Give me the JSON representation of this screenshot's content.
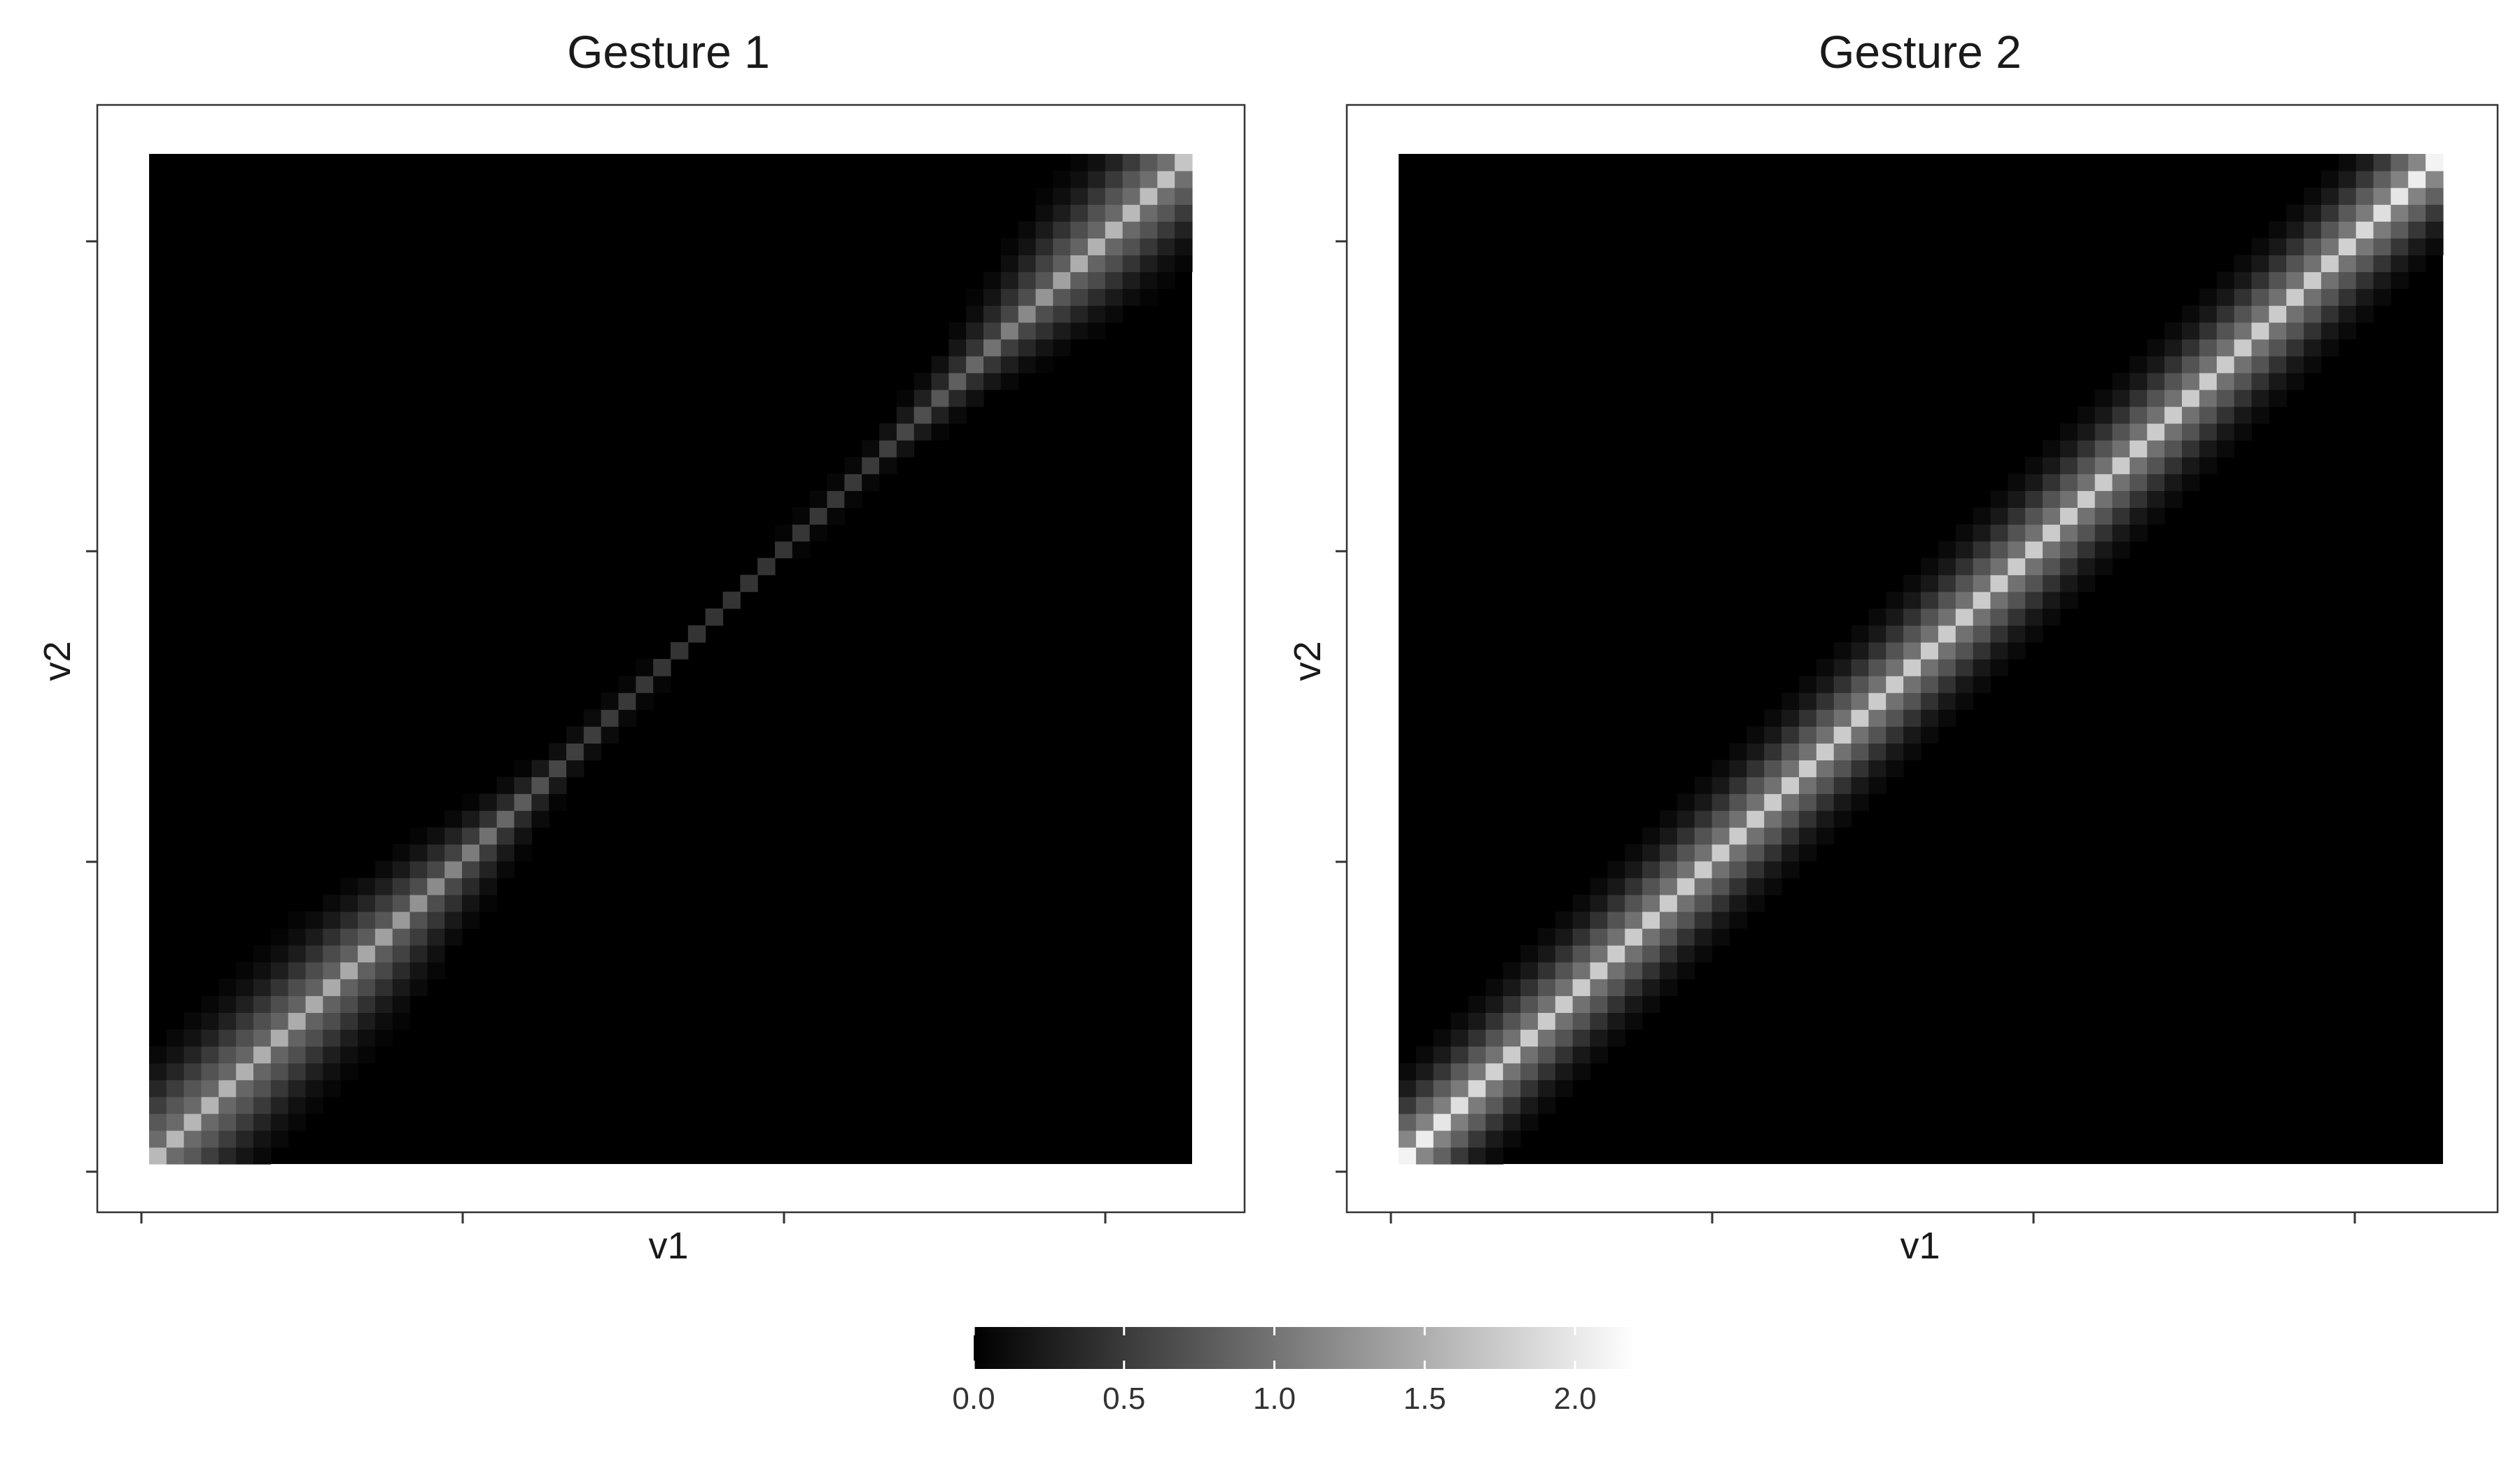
{
  "chart_data": [
    {
      "type": "heatmap",
      "title": "Gesture 1",
      "xlabel": "v1",
      "ylabel": "v2",
      "x_tick_labels": [],
      "y_tick_labels": [],
      "grid_size": 60,
      "colormap": "black-to-white",
      "description_of_values": "Intensity concentrated along the diagonal v1 = v2; wide bright bands at both ends, thin dim ridge in the middle.",
      "diagonal_profile": {
        "position": [
          0.0,
          0.1,
          0.2,
          0.3,
          0.4,
          0.5,
          0.6,
          0.7,
          0.8,
          0.9,
          1.0
        ],
        "peak_value": [
          1.6,
          1.5,
          1.45,
          1.1,
          0.55,
          0.45,
          0.45,
          0.5,
          0.9,
          1.5,
          1.7
        ],
        "band_width_sd": [
          2.8,
          2.6,
          2.4,
          1.6,
          0.7,
          0.5,
          0.5,
          0.6,
          1.4,
          2.4,
          2.6
        ]
      }
    },
    {
      "type": "heatmap",
      "title": "Gesture 2",
      "xlabel": "v1",
      "ylabel": "v2",
      "x_tick_labels": [],
      "y_tick_labels": [],
      "grid_size": 60,
      "colormap": "black-to-white",
      "description_of_values": "Uniform band along the diagonal v1 = v2 with a bright ridge along its whole length.",
      "diagonal_profile": {
        "position": [
          0.0,
          0.1,
          0.2,
          0.3,
          0.4,
          0.5,
          0.6,
          0.7,
          0.8,
          0.9,
          1.0
        ],
        "peak_value": [
          2.1,
          1.75,
          1.75,
          1.75,
          1.75,
          1.75,
          1.75,
          1.75,
          1.75,
          1.75,
          2.1
        ],
        "band_width_sd": [
          2.2,
          2.2,
          2.2,
          2.2,
          2.2,
          2.2,
          2.2,
          2.2,
          2.2,
          2.2,
          2.2
        ]
      }
    }
  ],
  "legend": {
    "type": "colorbar",
    "range": [
      0,
      2.2
    ],
    "ticks": [
      "0.0",
      "0.5",
      "1.0",
      "1.5",
      "2.0"
    ],
    "tick_values": [
      0.0,
      0.5,
      1.0,
      1.5,
      2.0
    ],
    "colors": [
      "#000000",
      "#ffffff"
    ],
    "position": "bottom"
  }
}
